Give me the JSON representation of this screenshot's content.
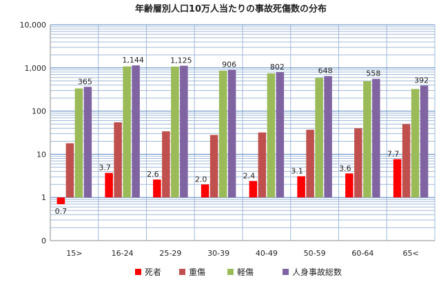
{
  "chart_data": {
    "type": "bar",
    "title": "年齢層別人口10万人当たりの事故死傷数の分布",
    "xlabel": "",
    "ylabel": "",
    "yscale": "log",
    "ylim": [
      0.1,
      10000
    ],
    "yticks": [
      0.1,
      1,
      10,
      100,
      1000,
      10000
    ],
    "ytick_labels": [
      "0",
      "1",
      "10",
      "100",
      "1,000",
      "10,000"
    ],
    "grid": true,
    "legend_position": "bottom",
    "categories": [
      "15>",
      "16-24",
      "25-29",
      "30-39",
      "40-49",
      "50-59",
      "60-64",
      "65<"
    ],
    "series": [
      {
        "name": "死者",
        "color": "#ff0000",
        "values": [
          0.7,
          3.7,
          2.6,
          2.0,
          2.4,
          3.1,
          3.6,
          7.7
        ],
        "labels": [
          "0.7",
          "3.7",
          "2.6",
          "2.0",
          "2.4",
          "3.1",
          "3.6",
          "7.7"
        ]
      },
      {
        "name": "重傷",
        "color": "#c0504d",
        "values": [
          18,
          55,
          34,
          28,
          32,
          37,
          40,
          50
        ],
        "labels": []
      },
      {
        "name": "軽傷",
        "color": "#9bbb59",
        "values": [
          335,
          1085,
          1075,
          860,
          750,
          590,
          495,
          325
        ],
        "labels": []
      },
      {
        "name": "人身事故総数",
        "color": "#8064a2",
        "values": [
          365,
          1144,
          1125,
          906,
          802,
          648,
          558,
          392
        ],
        "labels": [
          "365",
          "1,144",
          "1,125",
          "906",
          "802",
          "648",
          "558",
          "392"
        ]
      }
    ]
  }
}
